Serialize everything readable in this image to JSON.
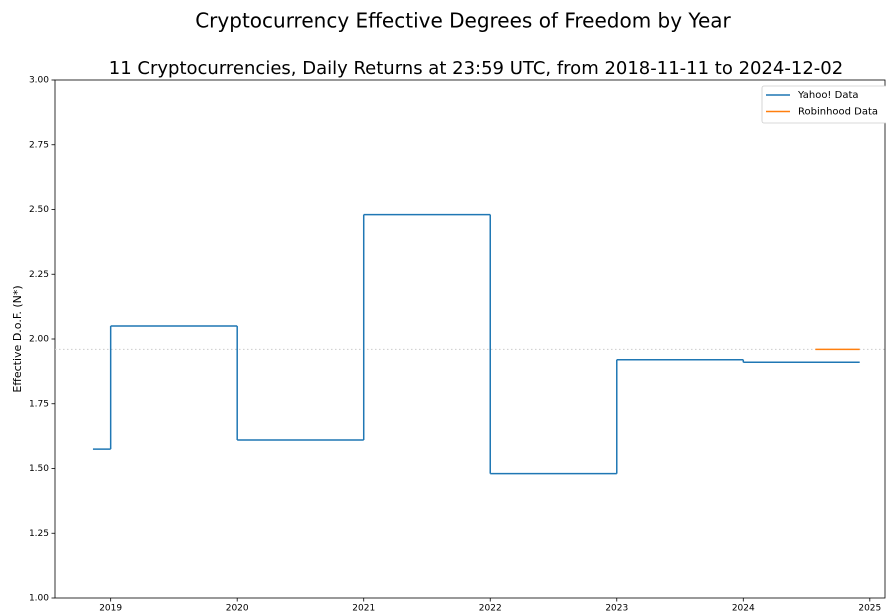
{
  "chart_data": {
    "type": "step",
    "title": "Cryptocurrency Effective Degrees of Freedom by Year",
    "subtitle": "11 Cryptocurrencies, Daily Returns at 23:59 UTC, from 2018-11-11 to 2024-12-02",
    "y_label": "Effective D.o.F. (N*)",
    "xlim": [
      2018.56,
      2025.12
    ],
    "xticks": [
      2019,
      2020,
      2021,
      2022,
      2023,
      2024,
      2025
    ],
    "ylim": [
      1,
      3
    ],
    "yticks": [
      {
        "value": 1,
        "label": "1.00"
      },
      {
        "value": 1.25,
        "label": "1.25"
      },
      {
        "value": 1.5,
        "label": "1.50"
      },
      {
        "value": 1.75,
        "label": "1.75"
      },
      {
        "value": 2,
        "label": "2.00"
      },
      {
        "value": 2.25,
        "label": "2.25"
      },
      {
        "value": 2.5,
        "label": "2.50"
      },
      {
        "value": 2.75,
        "label": "2.75"
      },
      {
        "value": 3,
        "label": "3.00"
      }
    ],
    "reference_line": {
      "value": 1.96,
      "color": "#cccccc"
    },
    "legend": "upper right",
    "series": [
      {
        "name": "Yahoo! Data",
        "color": "#1f77b4",
        "x": [
          2018.86,
          2019,
          2020,
          2021,
          2022,
          2023,
          2024,
          2024.92
        ],
        "values": [
          1.575,
          2.05,
          1.61,
          2.48,
          1.48,
          1.92,
          1.91,
          1.91
        ]
      },
      {
        "name": "Robinhood Data",
        "color": "#ff7f0e",
        "x": [
          2024.57,
          2024.92
        ],
        "values": [
          1.96,
          1.96
        ]
      }
    ]
  }
}
